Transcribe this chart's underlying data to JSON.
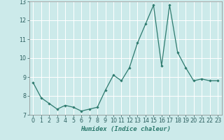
{
  "x": [
    0,
    1,
    2,
    3,
    4,
    5,
    6,
    7,
    8,
    9,
    10,
    11,
    12,
    13,
    14,
    15,
    16,
    17,
    18,
    19,
    20,
    21,
    22,
    23
  ],
  "y": [
    8.7,
    7.9,
    7.6,
    7.3,
    7.5,
    7.4,
    7.2,
    7.3,
    7.4,
    8.3,
    9.1,
    8.8,
    9.5,
    10.8,
    11.8,
    12.8,
    9.6,
    12.8,
    10.3,
    9.5,
    8.8,
    8.9,
    8.8,
    8.8
  ],
  "line_color": "#2d7a6e",
  "marker": "D",
  "marker_size": 1.8,
  "bg_color": "#cceaea",
  "grid_color": "#ffffff",
  "xlabel": "Humidex (Indice chaleur)",
  "xlabel_fontsize": 6.5,
  "tick_fontsize": 5.8,
  "ylim": [
    7,
    13
  ],
  "xlim": [
    -0.5,
    23.5
  ],
  "yticks": [
    7,
    8,
    9,
    10,
    11,
    12,
    13
  ],
  "xticks": [
    0,
    1,
    2,
    3,
    4,
    5,
    6,
    7,
    8,
    9,
    10,
    11,
    12,
    13,
    14,
    15,
    16,
    17,
    18,
    19,
    20,
    21,
    22,
    23
  ]
}
